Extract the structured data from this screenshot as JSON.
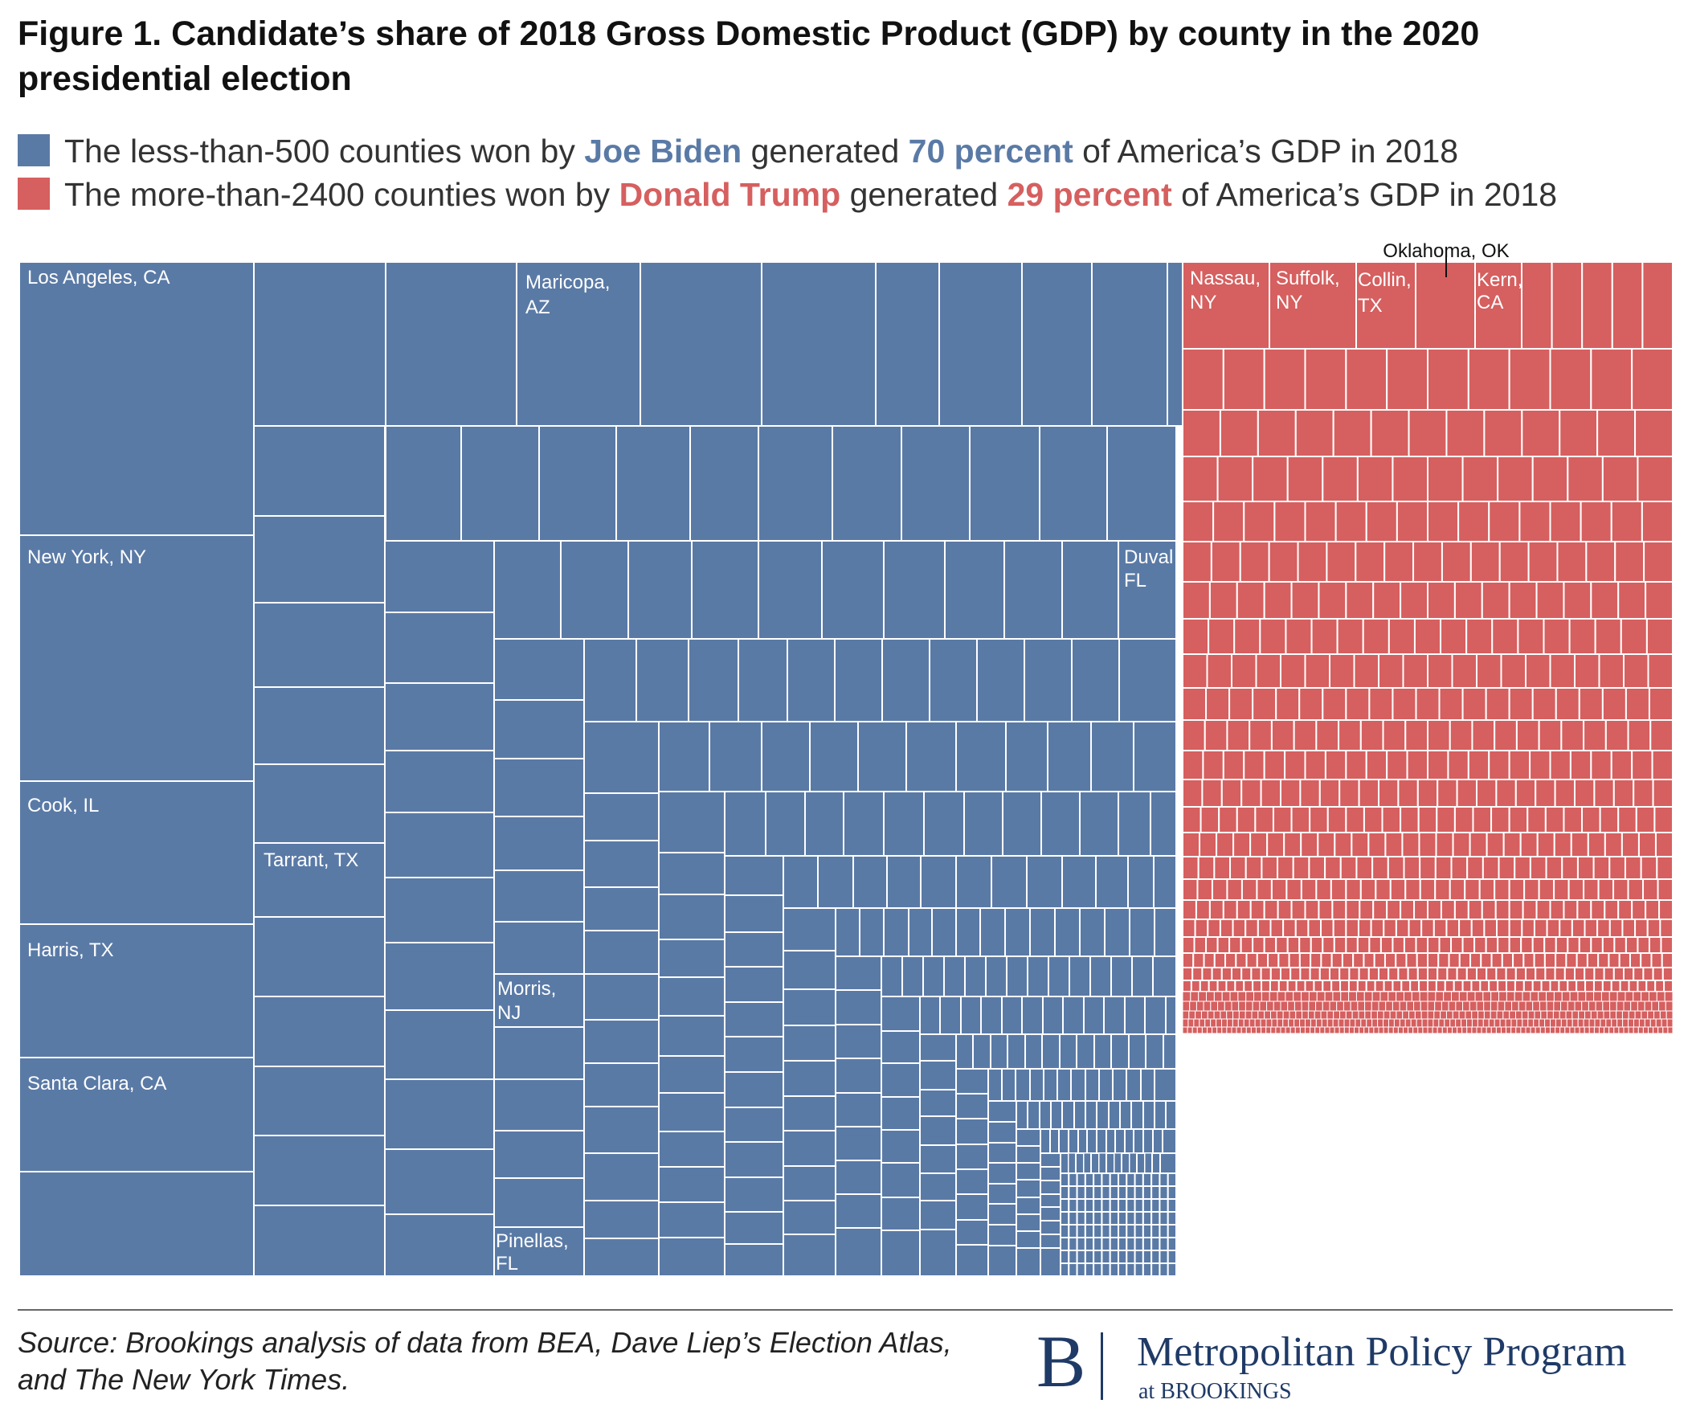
{
  "title": "Figure 1. Candidate’s share of 2018 Gross Domestic Product (GDP) by county in the 2020 presidential election",
  "legend": {
    "biden": {
      "color": "#5a7aa6",
      "highlight_color": "#5a7aa6",
      "text_1": "The less-than-500 counties won by ",
      "candidate": "Joe Biden",
      "text_2": " generated ",
      "share": "70 percent",
      "text_3": " of America’s GDP in 2018"
    },
    "trump": {
      "color": "#d65f5f",
      "highlight_color": "#d65f5f",
      "text_1": "The more-than-2400 counties won by ",
      "candidate": "Donald Trump",
      "text_2": " generated ",
      "share": "29 percent",
      "text_3": " of America’s GDP in 2018"
    }
  },
  "chart_data": {
    "type": "treemap",
    "title": "Figure 1. Candidate’s share of 2018 Gross Domestic Product (GDP) by county in the 2020 presidential election",
    "groups": [
      {
        "name": "Joe Biden",
        "share_percent": 70,
        "counties_label": "less-than-500",
        "color": "#5a7aa6",
        "labeled_counties": [
          "Los Angeles, CA",
          "New York, NY",
          "Cook, IL",
          "Harris, TX",
          "Santa Clara, CA",
          "Tarrant, TX",
          "Maricopa, AZ",
          "Duval FL",
          "Morris, NJ",
          "Pinellas, FL"
        ]
      },
      {
        "name": "Donald Trump",
        "share_percent": 29,
        "counties_label": "more-than-2400",
        "color": "#d65f5f",
        "labeled_counties": [
          "Nassau, NY",
          "Suffolk, NY",
          "Collin, TX",
          "Oklahoma, OK",
          "Kern, CA"
        ]
      }
    ],
    "labels": {
      "los_angeles": "Los Angeles, CA",
      "new_york": "New York, NY",
      "cook": "Cook, IL",
      "harris": "Harris, TX",
      "santa_clara": "Santa Clara, CA",
      "tarrant": "Tarrant, TX",
      "maricopa_1": "Maricopa,",
      "maricopa_2": "AZ",
      "duval_1": "Duval",
      "duval_2": "FL",
      "morris_1": "Morris,",
      "morris_2": "NJ",
      "pinellas_1": "Pinellas,",
      "pinellas_2": "FL",
      "nassau_1": "Nassau,",
      "nassau_2": "NY",
      "suffolk_1": "Suffolk,",
      "suffolk_2": "NY",
      "collin_1": "Collin,",
      "collin_2": "TX",
      "oklahoma": "Oklahoma, OK",
      "kern_1": "Kern,",
      "kern_2": "CA"
    }
  },
  "source": "Source: Brookings analysis of data from BEA, Dave Liep’s Election Atlas, and The New York Times.",
  "logo": {
    "letter": "B",
    "program": "Metropolitan Policy Program",
    "institution": "at BROOKINGS",
    "color": "#1f3a66"
  }
}
